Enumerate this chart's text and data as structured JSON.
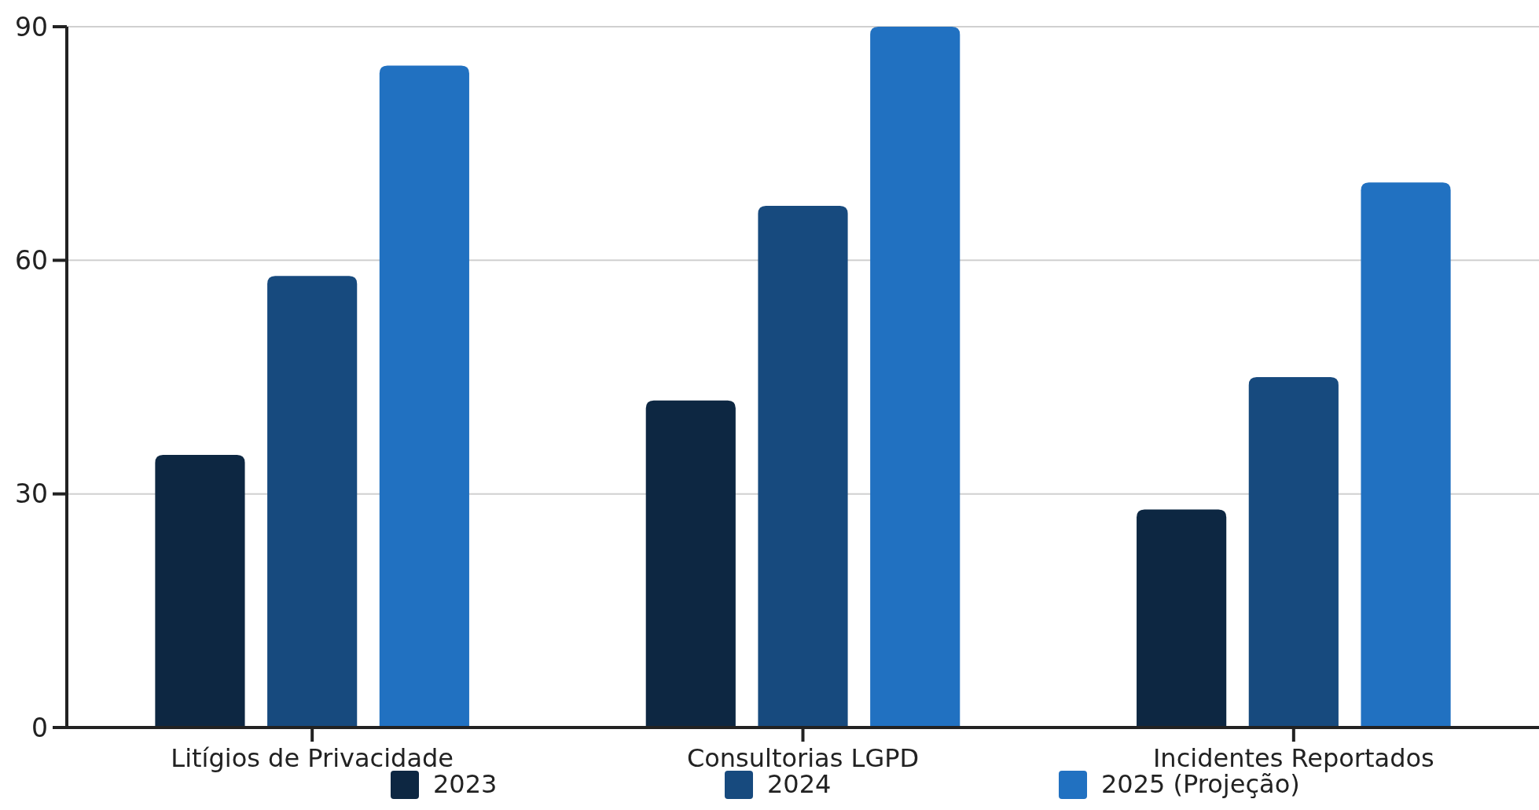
{
  "chart_data": {
    "type": "bar",
    "categories": [
      "Litígios de Privacidade",
      "Consultorias LGPD",
      "Incidentes Reportados"
    ],
    "series": [
      {
        "name": "2023",
        "color": "#0d2742",
        "values": [
          35,
          42,
          28
        ]
      },
      {
        "name": "2024",
        "color": "#174a7e",
        "values": [
          58,
          67,
          45
        ]
      },
      {
        "name": "2025 (Projeção)",
        "color": "#2171c1",
        "values": [
          85,
          90,
          70
        ]
      }
    ],
    "ylim": [
      0,
      90
    ],
    "yticks": [
      0,
      30,
      60,
      90
    ],
    "grid": "y",
    "legend": "bottom"
  }
}
